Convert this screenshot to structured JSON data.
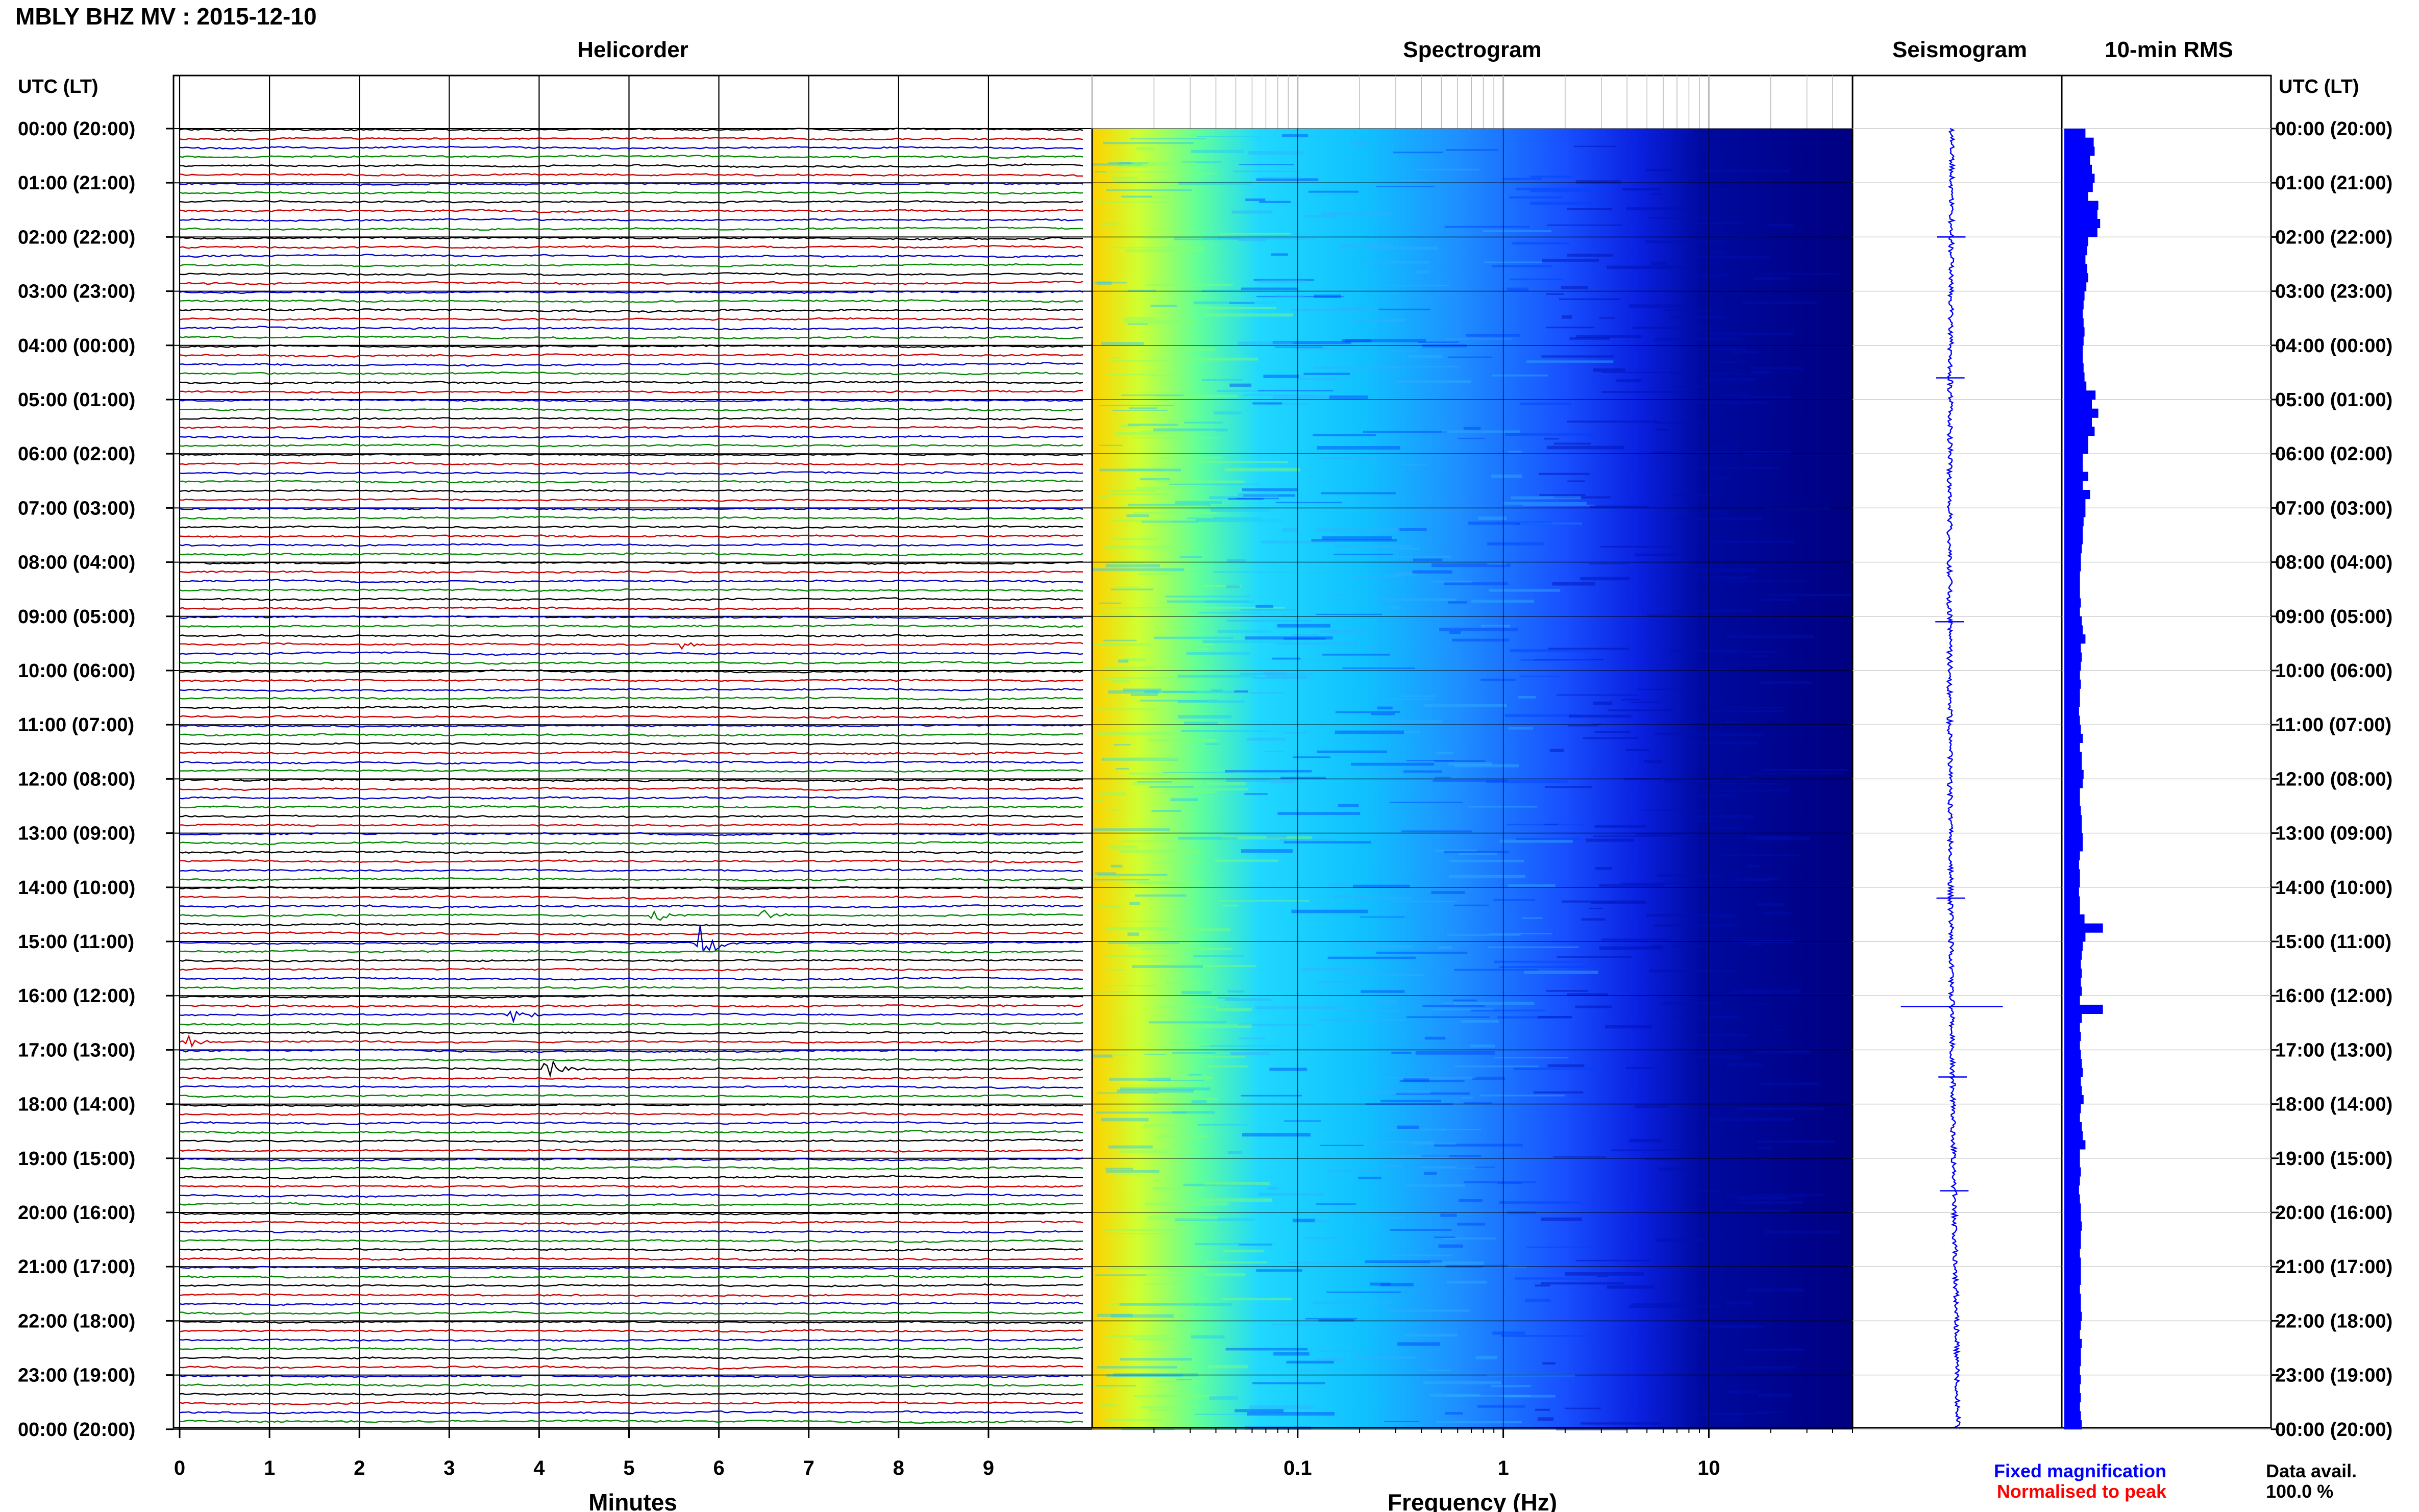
{
  "header": {
    "station_title": "MBLY BHZ MV : 2015-12-10",
    "tz_label_left": "UTC (LT)",
    "tz_label_right": "UTC (LT)"
  },
  "panels": {
    "helicorder": "Helicorder",
    "spectrogram": "Spectrogram",
    "seismogram": "Seismogram",
    "rms": "10-min RMS"
  },
  "axes": {
    "minutes_label": "Minutes",
    "frequency_label": "Frequency (Hz)"
  },
  "legend": {
    "fixed": "Fixed magnification",
    "normalised": "Normalised to peak",
    "fixed_color": "#0000ff",
    "normalised_color": "#ff0000"
  },
  "data_avail": {
    "label": "Data avail.",
    "value": "100.0 %"
  },
  "chart_data": [
    {
      "type": "line",
      "name": "helicorder",
      "title": "Helicorder",
      "xlabel": "Minutes",
      "ylabel": "UTC (LT)",
      "xlim": [
        0,
        10
      ],
      "x_ticks": [
        "0",
        "1",
        "2",
        "3",
        "4",
        "5",
        "6",
        "7",
        "8",
        "9"
      ],
      "y_tick_labels": [
        "00:00 (20:00)",
        "01:00 (21:00)",
        "02:00 (22:00)",
        "03:00 (23:00)",
        "04:00 (00:00)",
        "05:00 (01:00)",
        "06:00 (02:00)",
        "07:00 (03:00)",
        "08:00 (04:00)",
        "09:00 (05:00)",
        "10:00 (06:00)",
        "11:00 (07:00)",
        "12:00 (08:00)",
        "13:00 (09:00)",
        "14:00 (10:00)",
        "15:00 (11:00)",
        "16:00 (12:00)",
        "17:00 (13:00)",
        "18:00 (14:00)",
        "19:00 (15:00)",
        "20:00 (16:00)",
        "21:00 (17:00)",
        "22:00 (18:00)",
        "23:00 (19:00)",
        "00:00 (20:00)"
      ],
      "trace_colors": [
        "#000000",
        "#cc0000",
        "#0000cc",
        "#008800"
      ],
      "traces_per_hour": 6,
      "events": [
        {
          "trace": 90,
          "minute": 5.8,
          "amp": 3.0
        },
        {
          "trace": 87,
          "minute": 5.3,
          "amp": 1.2
        },
        {
          "trace": 87,
          "minute": 6.5,
          "amp": 1.0
        },
        {
          "trace": 57,
          "minute": 5.6,
          "amp": 0.8
        },
        {
          "trace": 98,
          "minute": 3.7,
          "amp": 1.4
        },
        {
          "trace": 104,
          "minute": 4.1,
          "amp": 1.8
        },
        {
          "trace": 101,
          "minute": 0.1,
          "amp": 1.0
        }
      ]
    },
    {
      "type": "heatmap",
      "name": "spectrogram",
      "title": "Spectrogram",
      "xlabel": "Frequency (Hz)",
      "x_scale": "log",
      "xlim": [
        0.01,
        50
      ],
      "x_ticks": [
        0.1,
        1,
        10
      ],
      "x_tick_labels": [
        "0.1",
        "1",
        "10"
      ],
      "colormap": [
        "#000080",
        "#0000ff",
        "#0080ff",
        "#00e0ff",
        "#60ffa0",
        "#d0ff30",
        "#ffd000"
      ]
    },
    {
      "type": "line",
      "name": "seismogram",
      "title": "Seismogram",
      "spike_hours": [
        16.2,
        9.1,
        14.2,
        2.0,
        4.6,
        17.5,
        19.6
      ]
    },
    {
      "type": "bar",
      "name": "rms",
      "title": "10-min RMS",
      "color": "#0000ff",
      "values": [
        2.3,
        3.2,
        3.3,
        2.8,
        3.0,
        3.3,
        3.1,
        2.6,
        3.7,
        3.6,
        3.9,
        3.6,
        2.6,
        2.5,
        2.3,
        2.5,
        2.6,
        2.4,
        2.2,
        2.1,
        2.0,
        2.1,
        2.2,
        2.1,
        2.0,
        2.0,
        2.1,
        2.2,
        2.4,
        3.4,
        3.0,
        3.7,
        3.0,
        3.3,
        2.6,
        2.6,
        2.0,
        2.0,
        2.6,
        2.0,
        2.8,
        2.3,
        2.3,
        2.1,
        2.0,
        2.0,
        1.9,
        1.8,
        1.8,
        1.7,
        1.7,
        1.7,
        1.8,
        1.7,
        1.9,
        2.0,
        2.3,
        1.8,
        1.9,
        1.8,
        1.7,
        1.8,
        1.7,
        1.7,
        1.6,
        1.7,
        1.8,
        2.0,
        1.7,
        1.9,
        1.9,
        2.1,
        2.0,
        1.7,
        1.7,
        1.8,
        1.9,
        1.9,
        2.0,
        2.0,
        1.7,
        1.6,
        1.7,
        1.7,
        1.6,
        1.7,
        1.7,
        2.2,
        4.2,
        2.3,
        2.0,
        1.9,
        1.8,
        1.9,
        1.8,
        1.9,
        1.7,
        4.2,
        1.9,
        1.7,
        1.8,
        1.7,
        1.8,
        1.9,
        2.0,
        1.8,
        1.9,
        2.1,
        1.8,
        1.7,
        1.9,
        2.0,
        2.3,
        1.7,
        1.7,
        1.8,
        1.7,
        1.6,
        1.7,
        1.8,
        1.8,
        1.9,
        1.8,
        1.8,
        1.7,
        1.8,
        1.8,
        1.8,
        1.7,
        1.8,
        1.8,
        1.9,
        1.8,
        1.7,
        1.9,
        1.8,
        1.8,
        1.7,
        1.8,
        1.7,
        1.8,
        1.7,
        1.8,
        1.9
      ]
    }
  ]
}
